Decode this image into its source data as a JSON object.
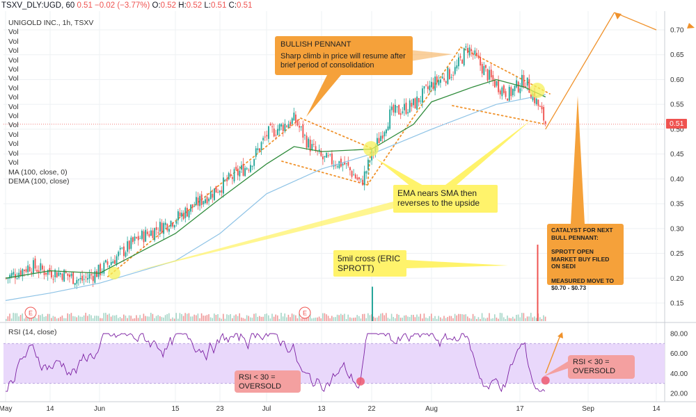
{
  "header": {
    "symbol": "TSXV_DLY:UGD, 60",
    "last": "0.51",
    "change": "−0.02 (−3.77%)",
    "o_label": "O:",
    "o": "0.52",
    "h_label": "H:",
    "h": "0.52",
    "l_label": "L:",
    "l": "0.51",
    "c_label": "C:",
    "c": "0.51"
  },
  "legend": {
    "title": "UNIGOLD INC., 1h, TSXV",
    "vol_rows": [
      "Vol",
      "Vol",
      "Vol",
      "Vol",
      "Vol",
      "Vol",
      "Vol",
      "Vol",
      "Vol",
      "Vol",
      "Vol",
      "Vol",
      "Vol",
      "Vol",
      "Vol"
    ],
    "ma": "MA (100, close, 0)",
    "dema": "DEMA (100, close)",
    "rsi": "RSI (14, close)"
  },
  "price_label": "0.51",
  "annotations": {
    "bullish_title": "BULLISH PENNANT",
    "bullish_body": "Sharp climb in price will resume after brief period of consolidation",
    "ema_note": "EMA nears SMA then reverses to the upside",
    "cross_note": "5mil cross (ERIC SPROTT)",
    "catalyst_1": "CATALYST FOR NEXT BULL PENNANT:",
    "catalyst_2": "SPROTT OPEN MARKET BUY FILED ON SEDI",
    "catalyst_3": "MEASURED MOVE TO $0.70 - $0.73",
    "rsi_left": "RSI < 30 = OVERSOLD",
    "rsi_right": "RSI < 30 = OVERSOLD",
    "earnings_marker": "E"
  },
  "colors": {
    "up": "#26a69a",
    "down": "#ef5350",
    "ema": "#2e8b3a",
    "sma": "#8ec3e6",
    "rsi_line": "#7b1fa2",
    "rsi_band": "#e9d8fb",
    "pennant": "#f0922b",
    "last_price_line": "#ef5350"
  },
  "chart_data": {
    "type": "candlestick",
    "y_axis": {
      "range": [
        0.1,
        0.74
      ],
      "ticks": [
        "0.70",
        "0.65",
        "0.60",
        "0.55",
        "0.50",
        "0.45",
        "0.40",
        "0.35",
        "0.30",
        "0.25",
        "0.20",
        "0.15"
      ]
    },
    "x_axis": {
      "ticks": [
        "May",
        "14",
        "Jun",
        "15",
        "23",
        "Jul",
        "13",
        "22",
        "Aug",
        "17",
        "Sep",
        "14"
      ]
    },
    "last_price": 0.51,
    "price_path": [
      {
        "t": "May",
        "v": 0.2
      },
      {
        "t": "May 8",
        "v": 0.225
      },
      {
        "t": "May 12",
        "v": 0.215
      },
      {
        "t": "May 18",
        "v": 0.21
      },
      {
        "t": "May 25",
        "v": 0.195
      },
      {
        "t": "Jun",
        "v": 0.215
      },
      {
        "t": "Jun 8",
        "v": 0.28
      },
      {
        "t": "Jun 15",
        "v": 0.32
      },
      {
        "t": "Jun 23",
        "v": 0.385
      },
      {
        "t": "Jun 28",
        "v": 0.43
      },
      {
        "t": "Jul",
        "v": 0.49
      },
      {
        "t": "Jul 7",
        "v": 0.52
      },
      {
        "t": "Jul 10",
        "v": 0.47
      },
      {
        "t": "Jul 13",
        "v": 0.44
      },
      {
        "t": "Jul 17",
        "v": 0.43
      },
      {
        "t": "Jul 20",
        "v": 0.39
      },
      {
        "t": "Jul 22",
        "v": 0.45
      },
      {
        "t": "Jul 25",
        "v": 0.53
      },
      {
        "t": "Jul 29",
        "v": 0.55
      },
      {
        "t": "Aug",
        "v": 0.59
      },
      {
        "t": "Aug 5",
        "v": 0.62
      },
      {
        "t": "Aug 7",
        "v": 0.665
      },
      {
        "t": "Aug 11",
        "v": 0.6
      },
      {
        "t": "Aug 14",
        "v": 0.57
      },
      {
        "t": "Aug 17",
        "v": 0.6
      },
      {
        "t": "Aug 20",
        "v": 0.55
      },
      {
        "t": "Aug 22",
        "v": 0.51
      }
    ],
    "ema": [
      {
        "t": "May",
        "v": 0.2
      },
      {
        "t": "May 14",
        "v": 0.215
      },
      {
        "t": "Jun",
        "v": 0.21
      },
      {
        "t": "Jun 15",
        "v": 0.29
      },
      {
        "t": "Jun 23",
        "v": 0.36
      },
      {
        "t": "Jul",
        "v": 0.43
      },
      {
        "t": "Jul 7",
        "v": 0.465
      },
      {
        "t": "Jul 13",
        "v": 0.455
      },
      {
        "t": "Jul 22",
        "v": 0.46
      },
      {
        "t": "Jul 29",
        "v": 0.51
      },
      {
        "t": "Aug",
        "v": 0.555
      },
      {
        "t": "Aug 8",
        "v": 0.585
      },
      {
        "t": "Aug 12",
        "v": 0.6
      },
      {
        "t": "Aug 17",
        "v": 0.585
      },
      {
        "t": "Aug 22",
        "v": 0.565
      }
    ],
    "sma": [
      {
        "t": "May",
        "v": 0.155
      },
      {
        "t": "May 14",
        "v": 0.17
      },
      {
        "t": "Jun",
        "v": 0.19
      },
      {
        "t": "Jun 15",
        "v": 0.235
      },
      {
        "t": "Jun 23",
        "v": 0.29
      },
      {
        "t": "Jul",
        "v": 0.37
      },
      {
        "t": "Jul 13",
        "v": 0.42
      },
      {
        "t": "Jul 22",
        "v": 0.45
      },
      {
        "t": "Aug",
        "v": 0.5
      },
      {
        "t": "Aug 12",
        "v": 0.55
      },
      {
        "t": "Aug 22",
        "v": 0.57
      }
    ],
    "volume_spikes": [
      {
        "t": "Jul 22",
        "rel": 0.45
      },
      {
        "t": "Aug 20",
        "rel": 1.0
      }
    ],
    "rsi": {
      "y_ticks": [
        "80.00",
        "60.00",
        "40.00",
        "20.00"
      ],
      "band": [
        30,
        70
      ],
      "oversold_points": [
        {
          "t": "Jul 20",
          "v": 32
        },
        {
          "t": "Aug 22",
          "v": 33
        }
      ]
    },
    "projections": [
      {
        "from": {
          "t": "Aug 22",
          "v": 0.5
        },
        "to": {
          "t": "Sep 6",
          "v": 0.735
        }
      },
      {
        "from": {
          "t": "Sep 6",
          "v": 0.735
        },
        "to": {
          "t": "Sep 17",
          "v": 0.7
        }
      }
    ]
  }
}
